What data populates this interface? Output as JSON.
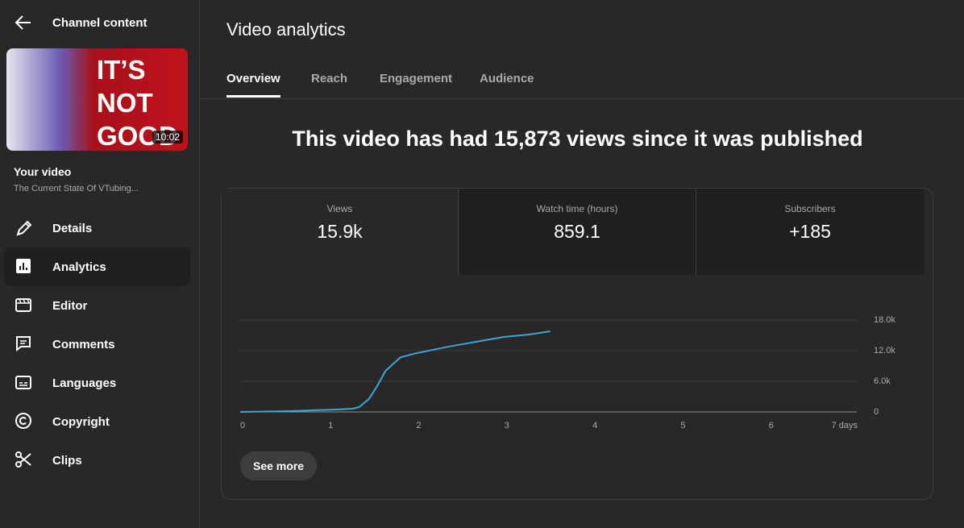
{
  "header": {
    "back_title": "Channel content"
  },
  "video": {
    "thumbnail_text": [
      "IT’S",
      "NOT",
      "GOOD"
    ],
    "duration": "10:02",
    "label": "Your video",
    "title": "The Current State Of VTubing..."
  },
  "nav": [
    {
      "label": "Details"
    },
    {
      "label": "Analytics",
      "selected": true
    },
    {
      "label": "Editor"
    },
    {
      "label": "Comments"
    },
    {
      "label": "Languages"
    },
    {
      "label": "Copyright"
    },
    {
      "label": "Clips"
    }
  ],
  "page_title": "Video analytics",
  "tabs": [
    {
      "label": "Overview",
      "selected": true
    },
    {
      "label": "Reach"
    },
    {
      "label": "Engagement"
    },
    {
      "label": "Audience"
    }
  ],
  "headline": "This video has had 15,873 views since it was published",
  "metrics": [
    {
      "label": "Views",
      "value": "15.9k",
      "selected": true
    },
    {
      "label": "Watch time (hours)",
      "value": "859.1"
    },
    {
      "label": "Subscribers",
      "value": "+185"
    }
  ],
  "chart_data": {
    "type": "line",
    "x": [
      0,
      0.55,
      1.1,
      1.28,
      1.35,
      1.46,
      1.55,
      1.65,
      1.82,
      2.0,
      2.37,
      2.73,
      3.0,
      3.28,
      3.52
    ],
    "series": [
      {
        "name": "Views",
        "color": "#3ea6d4",
        "values": [
          0,
          150,
          470,
          630,
          950,
          2500,
          4900,
          8050,
          10700,
          11500,
          12800,
          13900,
          14700,
          15150,
          15800
        ]
      }
    ],
    "xlim": [
      0,
      7
    ],
    "xticks": [
      0,
      1,
      2,
      3,
      4,
      5,
      6,
      {
        "value": 7,
        "label": "7 days"
      }
    ],
    "ylim": [
      0,
      18000
    ],
    "yticks": [
      {
        "value": 18000,
        "label": "18.0k"
      },
      {
        "value": 12000,
        "label": "12.0k"
      },
      {
        "value": 6000,
        "label": "6.0k"
      },
      0
    ],
    "grid": true
  },
  "button": "See more"
}
